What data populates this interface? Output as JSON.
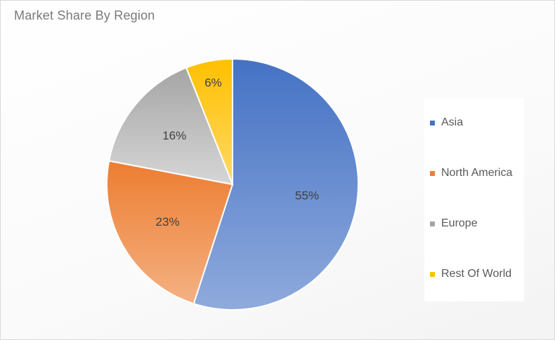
{
  "chart_data": {
    "type": "pie",
    "title": "Market Share By Region",
    "categories": [
      "Asia",
      "North America",
      "Europe",
      "Rest Of World"
    ],
    "values": [
      55,
      23,
      16,
      6
    ],
    "data_labels": [
      "55%",
      "23%",
      "16%",
      "6%"
    ],
    "colors": [
      "#4472c4",
      "#ed7d31",
      "#a5a5a5",
      "#ffc000"
    ],
    "legend_position": "right",
    "grid": false
  }
}
